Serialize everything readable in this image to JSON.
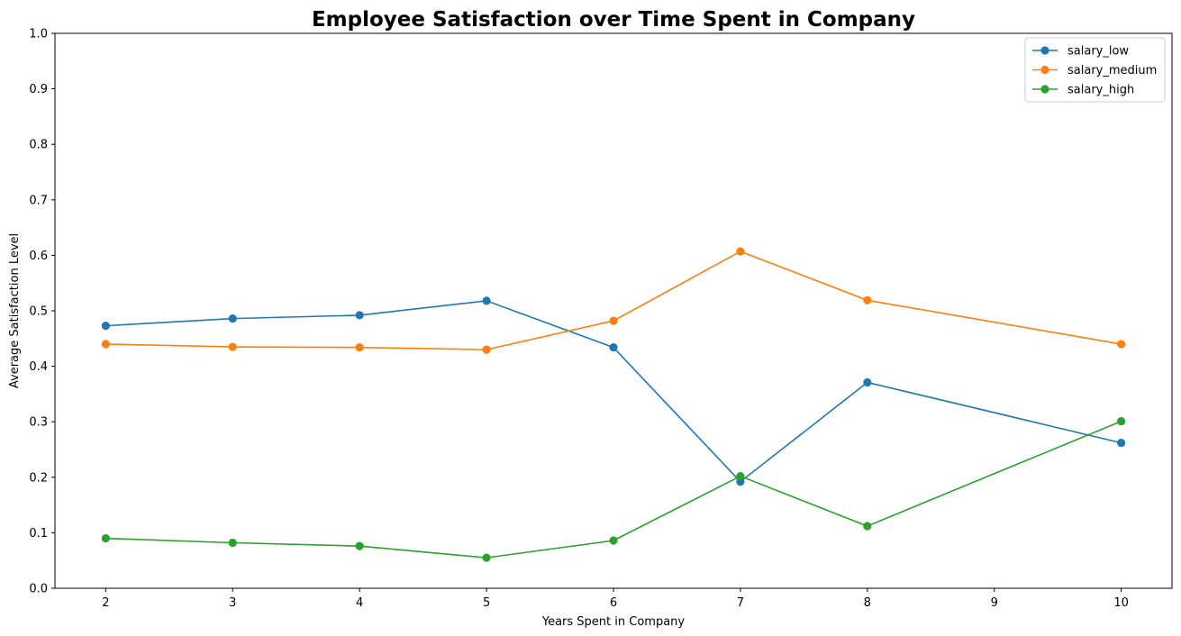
{
  "chart_data": {
    "type": "line",
    "title": "Employee Satisfaction over Time Spent in Company",
    "xlabel": "Years Spent in Company",
    "ylabel": "Average Satisfaction Level",
    "x": [
      2,
      3,
      4,
      5,
      6,
      7,
      8,
      10
    ],
    "xticks": [
      2,
      3,
      4,
      5,
      6,
      7,
      8,
      9,
      10
    ],
    "xlim": [
      1.6,
      10.4
    ],
    "ylim": [
      0,
      1
    ],
    "yticks": [
      0.0,
      0.1,
      0.2,
      0.3,
      0.4,
      0.5,
      0.6,
      0.7,
      0.8,
      0.9,
      1.0
    ],
    "grid": false,
    "legend_position": "top-right",
    "series": [
      {
        "name": "salary_low",
        "color": "#1f77b4",
        "values": [
          0.473,
          0.486,
          0.492,
          0.518,
          0.434,
          0.192,
          0.371,
          0.262
        ]
      },
      {
        "name": "salary_medium",
        "color": "#ff7f0e",
        "values": [
          0.44,
          0.435,
          0.434,
          0.43,
          0.482,
          0.607,
          0.519,
          0.44
        ]
      },
      {
        "name": "salary_high",
        "color": "#2ca02c",
        "values": [
          0.09,
          0.082,
          0.076,
          0.055,
          0.086,
          0.202,
          0.112,
          0.301
        ]
      }
    ]
  }
}
